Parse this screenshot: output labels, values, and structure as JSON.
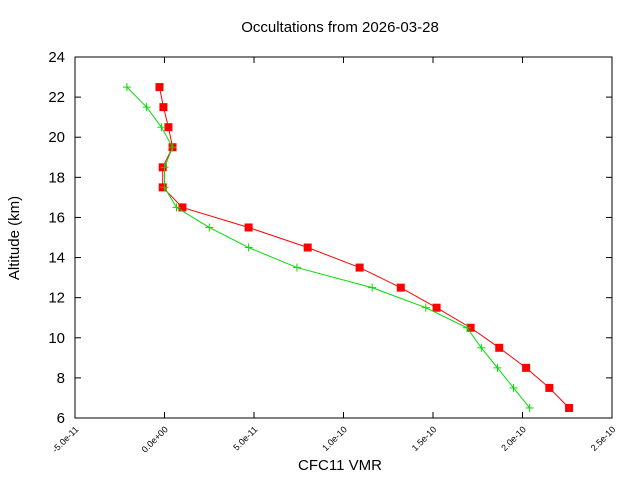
{
  "chart_data": {
    "type": "line",
    "title": "Occultations from 2026-03-28",
    "xlabel": "CFC11 VMR",
    "ylabel": "Altitude (km)",
    "xlim": [
      -5e-11,
      2.5e-10
    ],
    "ylim": [
      6,
      24
    ],
    "xticks": [
      -5e-11,
      0,
      5e-11,
      1e-10,
      1.5e-10,
      2e-10,
      2.5e-10
    ],
    "xtick_labels": [
      "-5.0e-11",
      "0.0e+00",
      "5.0e-11",
      "1.0e-10",
      "1.5e-10",
      "2.0e-10",
      "2.5e-10"
    ],
    "yticks": [
      6,
      8,
      10,
      12,
      14,
      16,
      18,
      20,
      22,
      24
    ],
    "ytick_labels": [
      "6",
      "8",
      "10",
      "12",
      "14",
      "16",
      "18",
      "20",
      "22",
      "24"
    ],
    "grid": false,
    "series": [
      {
        "color": "#ff0000",
        "marker": "square",
        "y": [
          22.5,
          21.5,
          20.5,
          19.5,
          18.5,
          17.5,
          16.5,
          15.5,
          14.5,
          13.5,
          12.5,
          11.5,
          10.5,
          9.5,
          8.5,
          7.5,
          6.5
        ],
        "x": [
          -2.8e-12,
          -6e-13,
          2.2e-12,
          4.5e-12,
          -1e-12,
          -1e-12,
          1e-11,
          4.7e-11,
          8e-11,
          1.09e-10,
          1.32e-10,
          1.52e-10,
          1.71e-10,
          1.87e-10,
          2.02e-10,
          2.15e-10,
          2.26e-10
        ]
      },
      {
        "color": "#00dd00",
        "marker": "plus",
        "y": [
          22.5,
          21.5,
          20.5,
          19.5,
          18.5,
          17.5,
          16.5,
          15.5,
          14.5,
          13.5,
          12.5,
          11.5,
          10.5,
          9.5,
          8.5,
          7.5,
          6.5
        ],
        "x": [
          -2.1e-11,
          -1e-11,
          -1.7e-12,
          4.5e-12,
          0,
          0,
          6.7e-12,
          2.5e-11,
          4.7e-11,
          7.4e-11,
          1.16e-10,
          1.46e-10,
          1.69e-10,
          1.77e-10,
          1.86e-10,
          1.95e-10,
          2.04e-10
        ]
      }
    ]
  }
}
